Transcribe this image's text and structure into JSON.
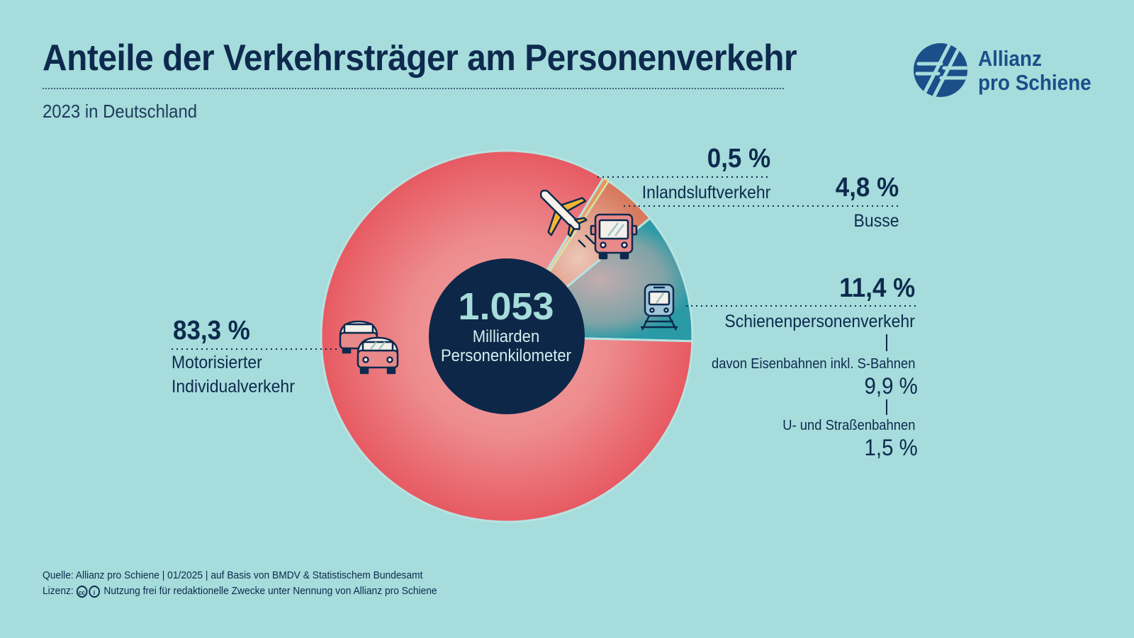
{
  "title": "Anteile der Verkehrsträger am Personenverkehr",
  "subtitle": "2023 in Deutschland",
  "logo": {
    "line1": "Allianz",
    "line2": "pro Schiene",
    "icon": "allianz-pro-schiene-logo-icon"
  },
  "center": {
    "value": "1.053",
    "line1": "Milliarden",
    "line2": "Personenkilometer"
  },
  "colors": {
    "background": "#a6dcdb",
    "navy": "#0d2a4e",
    "car": "#e85d64",
    "air": "#e9a07a",
    "bus": "#e4b3a3",
    "rail": "#2a9aa6"
  },
  "chart_data": {
    "type": "pie",
    "style": "donut",
    "categories": [
      "Motorisierter Individualverkehr",
      "Inlandsluftverkehr",
      "Busse",
      "Schienenpersonenverkehr"
    ],
    "values": [
      83.3,
      0.5,
      4.8,
      11.4
    ],
    "value_labels": [
      "83,3 %",
      "0,5 %",
      "4,8 %",
      "11,4 %"
    ],
    "slice_labels": [
      {
        "lines": [
          "Motorisierter",
          "Individualverkehr"
        ]
      },
      {
        "lines": [
          "Inlandsluftverkehr"
        ]
      },
      {
        "lines": [
          "Busse"
        ]
      },
      {
        "lines": [
          "Schienenpersonenverkehr"
        ]
      }
    ],
    "icons": [
      "cars-icon",
      "airplane-icon",
      "bus-icon",
      "train-icon"
    ],
    "breakdown": {
      "parent": "Schienenpersonenverkehr",
      "items": [
        {
          "label": "davon Eisenbahnen inkl. S-Bahnen",
          "value": 9.9,
          "value_label": "9,9 %"
        },
        {
          "label": "U- und Straßenbahnen",
          "value": 1.5,
          "value_label": "1,5 %"
        }
      ]
    }
  },
  "footer": {
    "source": "Quelle: Allianz pro Schiene | 01/2025 | auf Basis von BMDV & Statistischem Bundesamt",
    "license_label": "Lizenz:",
    "license_text": "Nutzung frei für redaktionelle Zwecke unter Nennung von Allianz pro Schiene"
  }
}
